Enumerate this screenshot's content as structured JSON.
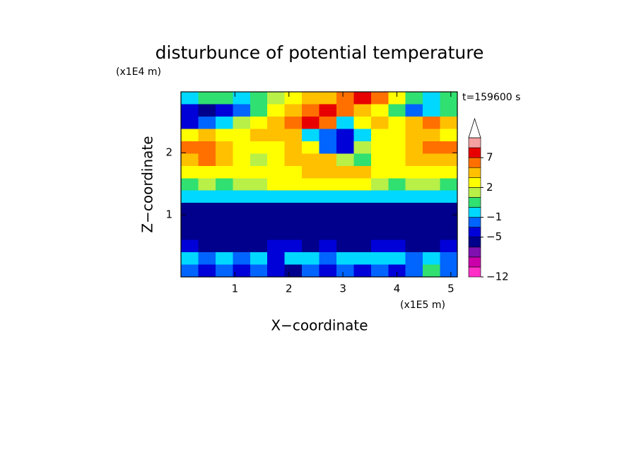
{
  "chart_data": {
    "type": "contourf",
    "title": "disturbunce of potential temperature",
    "y_unit": "(x1E4 m)",
    "x_unit": "(x1E5 m)",
    "time_label": "t=159600 s",
    "xlabel": "X−coordinate",
    "ylabel": "Z−coordinate",
    "xlim": [
      0,
      5.12
    ],
    "ylim": [
      0,
      2.98
    ],
    "xticks": [
      1,
      2,
      3,
      4,
      5
    ],
    "yticks": [
      1,
      2
    ],
    "levels": [
      -12,
      -10,
      -8,
      -6,
      -5,
      -3,
      -1,
      0,
      1,
      2,
      3,
      5,
      7,
      9,
      11
    ],
    "colors": [
      "#ff30c8",
      "#cc00aa",
      "#8010b0",
      "#00008c",
      "#0000d8",
      "#0064ff",
      "#00d8ff",
      "#30e070",
      "#b8f048",
      "#ffff00",
      "#ffc000",
      "#ff7000",
      "#e80000",
      "#f4a0a0"
    ],
    "extend_color": "#ffffff",
    "colorbar_ticks": [
      {
        "value": -12,
        "label": "−12"
      },
      {
        "value": -5,
        "label": "−5"
      },
      {
        "value": -1,
        "label": "−1"
      },
      2,
      7
    ],
    "field": [
      [
        -0.5,
        0.5,
        0.5,
        -0.5,
        0.5,
        1.5,
        2.5,
        4,
        4,
        6,
        8,
        6,
        2.5,
        0.5,
        -0.5,
        0.5
      ],
      [
        -4,
        -5.5,
        -4,
        -2,
        0.5,
        2.5,
        4,
        6,
        8,
        6,
        4,
        2.5,
        0.5,
        -2,
        -0.5,
        0.5
      ],
      [
        -4,
        -2,
        -0.5,
        1.5,
        2.5,
        4,
        6,
        8,
        6,
        -0.5,
        2.5,
        4,
        2.5,
        4,
        6,
        4
      ],
      [
        2.5,
        4,
        2.5,
        2.5,
        4,
        4,
        4,
        -0.5,
        -2,
        -4,
        -0.5,
        2.5,
        2.5,
        4,
        4,
        2.5
      ],
      [
        6,
        6,
        4,
        2.5,
        2.5,
        2.5,
        4,
        2.5,
        -2,
        -4,
        1.5,
        2.5,
        2.5,
        4,
        6,
        6
      ],
      [
        4,
        6,
        4,
        2.5,
        1.5,
        2.5,
        4,
        4,
        4,
        1.5,
        0.5,
        2.5,
        2.5,
        4,
        4,
        4
      ],
      [
        2.5,
        2.5,
        2.5,
        2.5,
        2.5,
        2.5,
        2.5,
        4,
        4,
        4,
        4,
        2.5,
        2.5,
        2.5,
        2.5,
        2.5
      ],
      [
        0.5,
        1.5,
        0.5,
        1.5,
        1.5,
        2.5,
        2.5,
        2.5,
        2.5,
        2.5,
        2.5,
        1.5,
        0.5,
        1.5,
        1.5,
        0.5
      ],
      [
        -0.5,
        -0.5,
        -0.5,
        -0.5,
        -0.5,
        -0.5,
        -0.5,
        -0.5,
        -0.5,
        -0.5,
        -0.5,
        -0.5,
        -0.5,
        -0.5,
        -0.5,
        -0.5
      ],
      [
        -5.5,
        -5.5,
        -5.5,
        -5.5,
        -5.5,
        -5.5,
        -5.5,
        -5.5,
        -5.5,
        -5.5,
        -5.5,
        -5.5,
        -5.5,
        -5.5,
        -5.5,
        -5.5
      ],
      [
        -5.5,
        -5.5,
        -5.5,
        -5.5,
        -5.5,
        -5.5,
        -5.5,
        -5.5,
        -5.5,
        -5.5,
        -5.5,
        -5.5,
        -5.5,
        -5.5,
        -5.5,
        -5.5
      ],
      [
        -5.5,
        -5.5,
        -5.5,
        -5.5,
        -5.5,
        -5.5,
        -5.5,
        -5.5,
        -5.5,
        -5.5,
        -5.5,
        -5.5,
        -5.5,
        -5.5,
        -5.5,
        -5.5
      ],
      [
        -4,
        -5.5,
        -5.5,
        -5.5,
        -5.5,
        -4,
        -4,
        -5.5,
        -4,
        -5.5,
        -5.5,
        -4,
        -4,
        -5.5,
        -5.5,
        -4
      ],
      [
        -0.5,
        -2,
        -0.5,
        -2,
        -0.5,
        -4,
        -0.5,
        -0.5,
        -2,
        -0.5,
        -0.5,
        -0.5,
        -0.5,
        -2,
        -0.5,
        -2
      ],
      [
        -2,
        -4,
        -2,
        -4,
        -2,
        -4,
        -5.5,
        -2,
        -4,
        -2,
        -4,
        -2,
        -4,
        -2,
        0.5,
        -2
      ]
    ]
  }
}
